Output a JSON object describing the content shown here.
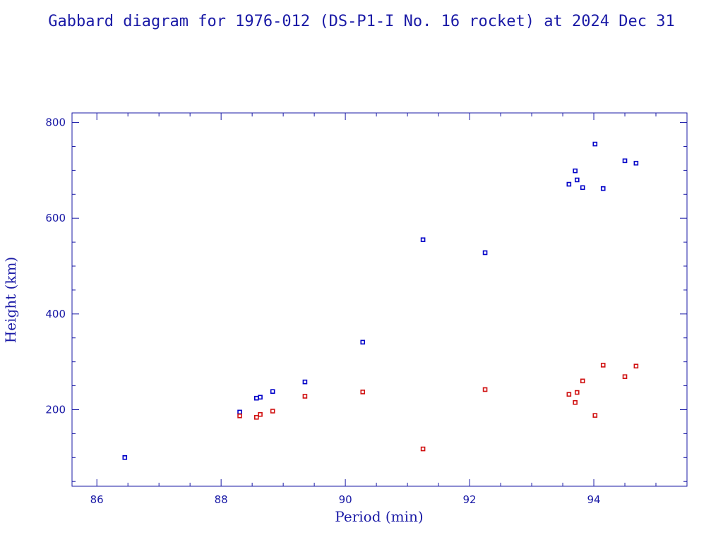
{
  "chart_data": {
    "type": "scatter",
    "title": "Gabbard diagram for 1976-012 (DS-P1-I No. 16 rocket) at 2024 Dec 31",
    "xlabel": "Period (min)",
    "ylabel": "Height (km)",
    "xlim": [
      85.6,
      95.5
    ],
    "ylim": [
      40,
      820
    ],
    "xticks": [
      86,
      88,
      90,
      92,
      94
    ],
    "yticks": [
      200,
      400,
      600,
      800
    ],
    "x_minor_step": 0.5,
    "y_minor_step": 50,
    "grid": false,
    "legend": "none",
    "colors": {
      "axis": "#1a1aa6",
      "apogee": "#0000c8",
      "perigee": "#d01010"
    },
    "series": [
      {
        "role": "apogee",
        "points": [
          [
            86.45,
            100
          ],
          [
            88.3,
            195
          ],
          [
            88.57,
            224
          ],
          [
            88.63,
            226
          ],
          [
            88.83,
            238
          ],
          [
            89.35,
            258
          ],
          [
            90.28,
            341
          ],
          [
            91.25,
            555
          ],
          [
            92.25,
            528
          ],
          [
            93.6,
            671
          ],
          [
            93.7,
            699
          ],
          [
            93.73,
            680
          ],
          [
            93.82,
            664
          ],
          [
            94.02,
            755
          ],
          [
            94.15,
            662
          ],
          [
            94.5,
            720
          ],
          [
            94.68,
            715
          ]
        ]
      },
      {
        "role": "perigee",
        "points": [
          [
            88.3,
            187
          ],
          [
            88.57,
            184
          ],
          [
            88.63,
            190
          ],
          [
            88.83,
            197
          ],
          [
            89.35,
            228
          ],
          [
            90.28,
            237
          ],
          [
            91.25,
            118
          ],
          [
            92.25,
            242
          ],
          [
            93.6,
            232
          ],
          [
            93.7,
            215
          ],
          [
            93.73,
            236
          ],
          [
            93.82,
            260
          ],
          [
            94.02,
            188
          ],
          [
            94.15,
            293
          ],
          [
            94.5,
            269
          ],
          [
            94.68,
            291
          ]
        ]
      }
    ]
  }
}
